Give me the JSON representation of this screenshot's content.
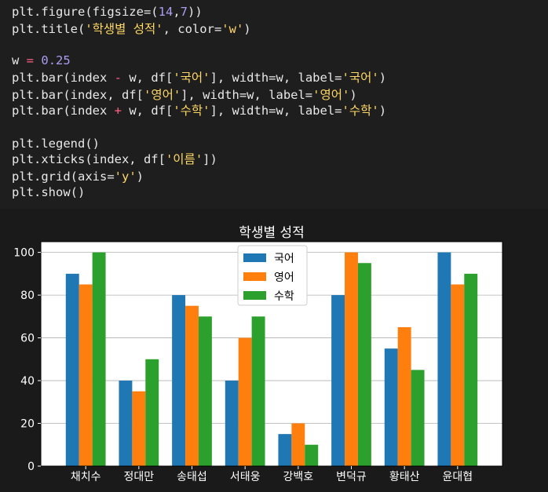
{
  "code_lines": [
    [
      [
        "txt",
        "plt.figure(figsize=("
      ],
      [
        "num",
        "14"
      ],
      [
        "txt",
        ","
      ],
      [
        "num",
        "7"
      ],
      [
        "txt",
        "))"
      ]
    ],
    [
      [
        "txt",
        "plt.title("
      ],
      [
        "str",
        "'학생별 성적'"
      ],
      [
        "txt",
        ", color="
      ],
      [
        "str",
        "'w'"
      ],
      [
        "txt",
        ")"
      ]
    ],
    [],
    [
      [
        "txt",
        "w "
      ],
      [
        "op",
        "="
      ],
      [
        "txt",
        " "
      ],
      [
        "num",
        "0.25"
      ]
    ],
    [
      [
        "txt",
        "plt.bar(index "
      ],
      [
        "op",
        "-"
      ],
      [
        "txt",
        " w, df["
      ],
      [
        "str",
        "'국어'"
      ],
      [
        "txt",
        "], width=w, label="
      ],
      [
        "str",
        "'국어'"
      ],
      [
        "txt",
        ")"
      ]
    ],
    [
      [
        "txt",
        "plt.bar(index, df["
      ],
      [
        "str",
        "'영어'"
      ],
      [
        "txt",
        "], width=w, label="
      ],
      [
        "str",
        "'영어'"
      ],
      [
        "txt",
        ")"
      ]
    ],
    [
      [
        "txt",
        "plt.bar(index "
      ],
      [
        "op",
        "+"
      ],
      [
        "txt",
        " w, df["
      ],
      [
        "str",
        "'수학'"
      ],
      [
        "txt",
        "], width=w, label="
      ],
      [
        "str",
        "'수학'"
      ],
      [
        "txt",
        ")"
      ]
    ],
    [],
    [
      [
        "txt",
        "plt.legend()"
      ]
    ],
    [
      [
        "txt",
        "plt.xticks(index, df["
      ],
      [
        "str",
        "'이름'"
      ],
      [
        "txt",
        "])"
      ]
    ],
    [
      [
        "txt",
        "plt.grid(axis="
      ],
      [
        "str",
        "'y'"
      ],
      [
        "txt",
        ")"
      ]
    ],
    [
      [
        "txt",
        "plt.show()"
      ]
    ]
  ],
  "colors": {
    "series": [
      "#1f77b4",
      "#ff7f0e",
      "#2ca02c"
    ],
    "grid": "#b0b0b0",
    "axes_bg": "#ffffff",
    "text": "#ffffff"
  },
  "chart_data": {
    "type": "bar",
    "title": "학생별 성적",
    "xlabel": "",
    "ylabel": "",
    "categories": [
      "채치수",
      "정대만",
      "송태섭",
      "서태웅",
      "강백호",
      "변덕규",
      "황태산",
      "윤대협"
    ],
    "series": [
      {
        "name": "국어",
        "values": [
          90,
          40,
          80,
          40,
          15,
          80,
          55,
          100
        ]
      },
      {
        "name": "영어",
        "values": [
          85,
          35,
          75,
          60,
          20,
          100,
          65,
          85
        ]
      },
      {
        "name": "수학",
        "values": [
          100,
          50,
          70,
          70,
          10,
          95,
          45,
          90
        ]
      }
    ],
    "ylim": [
      0,
      105
    ],
    "yticks": [
      0,
      20,
      40,
      60,
      80,
      100
    ],
    "grid": "y",
    "legend_position": "top-center"
  }
}
